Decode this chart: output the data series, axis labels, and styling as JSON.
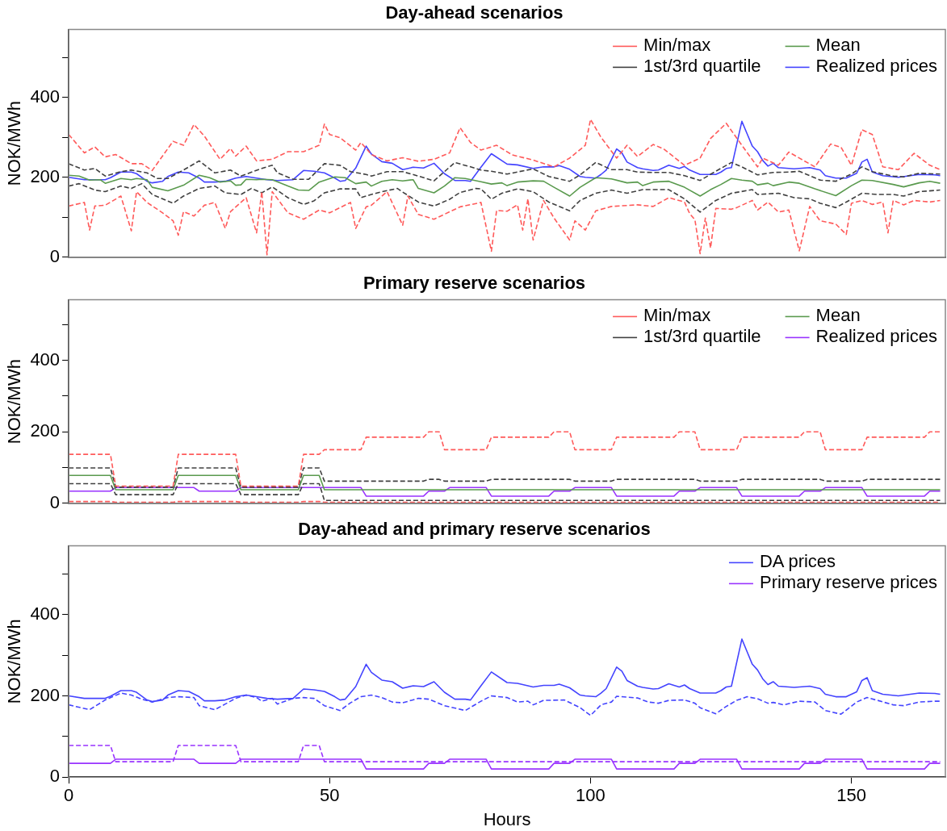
{
  "chart_data": [
    {
      "type": "line",
      "title": "Day-ahead scenarios",
      "ylabel": "NOK/MWh",
      "xlim": [
        0,
        168
      ],
      "ylim": [
        0,
        570
      ],
      "yticks": [
        0,
        {
          "value": 100,
          "label": null
        },
        200,
        {
          "value": 300,
          "label": null
        },
        400,
        {
          "value": 500,
          "label": null
        }
      ],
      "tick_labels": "y",
      "legend": "top right",
      "series": [
        {
          "name": "Min/max",
          "color": "#ff5a5a",
          "line_style": "dashed",
          "x": [
            0,
            3,
            4,
            5,
            7,
            10,
            12,
            13,
            15,
            18,
            20,
            21,
            22,
            24,
            26,
            28,
            30,
            31,
            34,
            36,
            37,
            38,
            39,
            42,
            45,
            48,
            50,
            54,
            55,
            57,
            58,
            61,
            64,
            65,
            67,
            70,
            75,
            79,
            81,
            82,
            84,
            86,
            87,
            88,
            89,
            91,
            93,
            96,
            97,
            99,
            101,
            104,
            109,
            112,
            115,
            118,
            119,
            120,
            121,
            122,
            123,
            124,
            127,
            128,
            131,
            132,
            134,
            136,
            138,
            140,
            142,
            144,
            147,
            149,
            150,
            152,
            154,
            156,
            157,
            158,
            160,
            162,
            165,
            167
          ],
          "values": [
            128,
            137,
            68,
            128,
            130,
            153,
            66,
            164,
            137,
            111,
            91,
            55,
            114,
            103,
            130,
            137,
            72,
            114,
            149,
            61,
            164,
            6,
            164,
            111,
            95,
            118,
            111,
            137,
            72,
            126,
            130,
            164,
            80,
            153,
            107,
            95,
            126,
            137,
            15,
            117,
            115,
            131,
            68,
            146,
            43,
            142,
            98,
            43,
            91,
            68,
            116,
            127,
            131,
            127,
            149,
            138,
            109,
            94,
            9,
            98,
            23,
            122,
            120,
            124,
            142,
            118,
            138,
            113,
            118,
            16,
            127,
            91,
            83,
            57,
            135,
            142,
            132,
            138,
            61,
            142,
            131,
            142,
            138,
            142
          ]
        },
        {
          "color": "#ff5a5a",
          "line_style": "dashed",
          "x": [
            0,
            3,
            5,
            7,
            9,
            12,
            14,
            16,
            20,
            22,
            24,
            26,
            29,
            31,
            32,
            34,
            36,
            39,
            42,
            45,
            48,
            49,
            50,
            52,
            55,
            56,
            58,
            61,
            64,
            67,
            70,
            73,
            75,
            77,
            79,
            82,
            85,
            89,
            93,
            96,
            99,
            100,
            102,
            105,
            107,
            109,
            112,
            114,
            118,
            121,
            123,
            126,
            129,
            132,
            133,
            136,
            138,
            140,
            143,
            146,
            148,
            150,
            152,
            154,
            156,
            159,
            162,
            165,
            167
          ],
          "values": [
            307,
            261,
            276,
            251,
            257,
            234,
            234,
            217,
            290,
            280,
            332,
            303,
            245,
            272,
            253,
            278,
            241,
            245,
            264,
            264,
            280,
            333,
            307,
            299,
            268,
            287,
            257,
            241,
            249,
            240,
            245,
            261,
            324,
            287,
            268,
            280,
            256,
            243,
            226,
            248,
            280,
            345,
            300,
            248,
            280,
            252,
            282,
            271,
            230,
            248,
            297,
            335,
            280,
            226,
            248,
            230,
            263,
            248,
            226,
            283,
            275,
            230,
            319,
            307,
            226,
            219,
            260,
            230,
            219
          ]
        },
        {
          "name": "1st/3rd quartile",
          "color": "#404040",
          "line_style": "dashed",
          "x": [
            0,
            2,
            5,
            7,
            10,
            12,
            14,
            16,
            20,
            22,
            25,
            28,
            30,
            33,
            35,
            37,
            39,
            42,
            45,
            47,
            49,
            52,
            55,
            56,
            58,
            60,
            63,
            64,
            67,
            70,
            73,
            75,
            78,
            79,
            81,
            83,
            86,
            89,
            92,
            96,
            98,
            101,
            104,
            107,
            110,
            115,
            118,
            121,
            124,
            127,
            131,
            132,
            136,
            139,
            142,
            144,
            147,
            149,
            152,
            155,
            158,
            160,
            163,
            167
          ],
          "values": [
            178,
            184,
            168,
            164,
            178,
            172,
            184,
            157,
            135,
            153,
            172,
            178,
            161,
            157,
            172,
            161,
            176,
            149,
            132,
            141,
            161,
            171,
            171,
            149,
            157,
            164,
            172,
            163,
            138,
            128,
            145,
            162,
            172,
            171,
            145,
            160,
            171,
            164,
            138,
            116,
            142,
            160,
            168,
            160,
            169,
            169,
            146,
            113,
            142,
            160,
            169,
            157,
            160,
            149,
            146,
            135,
            124,
            138,
            160,
            157,
            157,
            153,
            164,
            168
          ]
        },
        {
          "color": "#404040",
          "line_style": "dashed",
          "x": [
            0,
            3,
            5,
            7,
            10,
            12,
            15,
            17,
            19,
            22,
            25,
            28,
            31,
            33,
            37,
            39,
            40,
            43,
            46,
            49,
            52,
            54,
            57,
            58,
            61,
            64,
            67,
            70,
            74,
            77,
            79,
            81,
            84,
            89,
            92,
            96,
            98,
            101,
            104,
            107,
            109,
            112,
            115,
            118,
            121,
            124,
            127,
            129,
            132,
            135,
            138,
            140,
            144,
            147,
            150,
            152,
            154,
            158,
            160,
            163,
            167
          ],
          "values": [
            234,
            218,
            222,
            203,
            214,
            218,
            211,
            197,
            197,
            218,
            241,
            211,
            218,
            203,
            222,
            230,
            211,
            195,
            195,
            234,
            230,
            214,
            207,
            203,
            214,
            214,
            203,
            191,
            237,
            226,
            218,
            215,
            208,
            221,
            202,
            190,
            206,
            237,
            219,
            219,
            213,
            212,
            212,
            204,
            192,
            215,
            237,
            226,
            206,
            212,
            213,
            215,
            193,
            190,
            208,
            226,
            214,
            203,
            201,
            210,
            208
          ]
        },
        {
          "name": "Mean",
          "color": "#5a9a4e",
          "line_style": "solid",
          "x": [
            0,
            2,
            4,
            6,
            7,
            10,
            12,
            13,
            15,
            16,
            19,
            22,
            25,
            27,
            29,
            31,
            32,
            33,
            34,
            36,
            37,
            39,
            42,
            44,
            46,
            48,
            51,
            53,
            55,
            57,
            58,
            60,
            62,
            64,
            66,
            67,
            70,
            72,
            74,
            76,
            79,
            81,
            83,
            84,
            86,
            89,
            91,
            93,
            96,
            98,
            101,
            104,
            107,
            109,
            110,
            112,
            115,
            118,
            121,
            123,
            125,
            127,
            129,
            131,
            132,
            134,
            135,
            138,
            140,
            143,
            147,
            150,
            152,
            154,
            158,
            160,
            163,
            165,
            167
          ],
          "values": [
            205,
            203,
            193,
            194,
            185,
            197,
            194,
            197,
            194,
            175,
            166,
            180,
            205,
            199,
            188,
            191,
            180,
            181,
            195,
            194,
            195,
            194,
            178,
            168,
            167,
            188,
            201,
            199,
            184,
            188,
            178,
            190,
            194,
            191,
            194,
            172,
            161,
            178,
            199,
            197,
            189,
            183,
            186,
            179,
            188,
            191,
            190,
            175,
            153,
            175,
            199,
            196,
            186,
            188,
            179,
            188,
            190,
            175,
            153,
            169,
            182,
            197,
            193,
            190,
            181,
            185,
            179,
            188,
            185,
            171,
            154,
            179,
            193,
            192,
            182,
            176,
            186,
            190,
            185
          ]
        },
        {
          "name": "Realized prices",
          "color": "#4444ff",
          "line_style": "solid",
          "x": [
            0,
            3,
            7,
            8,
            10,
            12,
            13,
            15,
            16,
            18,
            19,
            21,
            23,
            25,
            26,
            28,
            30,
            32,
            34,
            36,
            38,
            40,
            43,
            45,
            47,
            49,
            51,
            52,
            53,
            55,
            57,
            58,
            60,
            62,
            64,
            66,
            68,
            70,
            72,
            74,
            76,
            77,
            79,
            81,
            84,
            86,
            89,
            91,
            93,
            94,
            96,
            98,
            99,
            101,
            102,
            103,
            105,
            106,
            107,
            109,
            110,
            112,
            113,
            115,
            117,
            118,
            119,
            121,
            124,
            125,
            126,
            127,
            129,
            130,
            131,
            132,
            133,
            134,
            135,
            136,
            139,
            142,
            144,
            145,
            147,
            149,
            151,
            152,
            153,
            154,
            156,
            159,
            163,
            166,
            167
          ],
          "values": [
            200,
            194,
            194,
            199,
            213,
            213,
            209,
            190,
            186,
            190,
            202,
            213,
            211,
            198,
            188,
            188,
            190,
            198,
            202,
            198,
            194,
            192,
            194,
            217,
            215,
            211,
            198,
            190,
            192,
            223,
            278,
            258,
            239,
            235,
            219,
            225,
            223,
            235,
            209,
            192,
            192,
            190,
            225,
            259,
            233,
            231,
            222,
            226,
            226,
            229,
            220,
            202,
            200,
            198,
            207,
            218,
            271,
            261,
            238,
            224,
            221,
            217,
            218,
            230,
            222,
            227,
            218,
            207,
            207,
            213,
            222,
            224,
            340,
            309,
            278,
            264,
            242,
            228,
            235,
            224,
            221,
            224,
            218,
            204,
            198,
            198,
            210,
            238,
            245,
            213,
            204,
            200,
            207,
            206,
            204
          ]
        }
      ]
    },
    {
      "type": "line",
      "title": "Primary reserve scenarios",
      "ylabel": "NOK/MWh",
      "xlim": [
        0,
        168
      ],
      "ylim": [
        0,
        570
      ],
      "yticks": [
        0,
        {
          "value": 100,
          "label": null
        },
        200,
        {
          "value": 300,
          "label": null
        },
        400,
        {
          "value": 500,
          "label": null
        }
      ],
      "tick_labels": "y",
      "legend": "top right",
      "series": [
        {
          "name": "Min/max",
          "color": "#ff5a5a",
          "line_style": "dashed",
          "x": [
            0,
            8,
            9,
            20,
            21,
            32,
            33,
            44,
            45,
            48,
            49,
            167
          ],
          "values": [
            5,
            5,
            3,
            3,
            5,
            5,
            3,
            3,
            5,
            5,
            3,
            3
          ]
        },
        {
          "color": "#ff5a5a",
          "line_style": "dashed",
          "x": [
            0,
            8,
            9,
            20,
            21,
            32,
            33,
            44,
            45,
            48,
            49,
            56,
            57,
            68,
            69,
            71,
            72,
            80,
            81,
            92,
            93,
            96,
            97,
            104,
            105,
            116,
            117,
            120,
            121,
            128,
            129,
            140,
            141,
            144,
            145,
            152,
            153,
            164,
            165,
            167
          ],
          "values": [
            137,
            137,
            48,
            48,
            137,
            137,
            48,
            48,
            137,
            137,
            150,
            150,
            185,
            185,
            200,
            200,
            150,
            150,
            185,
            185,
            200,
            200,
            150,
            150,
            185,
            185,
            200,
            200,
            150,
            150,
            185,
            185,
            200,
            200,
            150,
            150,
            185,
            185,
            200,
            200
          ]
        },
        {
          "name": "1st/3rd quartile",
          "color": "#404040",
          "line_style": "dashed",
          "x": [
            0,
            8,
            9,
            20,
            21,
            32,
            33,
            44,
            45,
            48,
            49,
            167
          ],
          "values": [
            55,
            55,
            24,
            24,
            55,
            55,
            24,
            24,
            55,
            55,
            8,
            8
          ]
        },
        {
          "color": "#404040",
          "line_style": "dashed",
          "x": [
            0,
            8,
            9,
            20,
            21,
            32,
            33,
            44,
            45,
            48,
            49,
            68,
            69,
            71,
            72,
            80,
            81,
            96,
            97,
            104,
            105,
            120,
            121,
            128,
            129,
            144,
            145,
            152,
            153,
            167
          ],
          "values": [
            99,
            99,
            45,
            45,
            99,
            99,
            45,
            45,
            99,
            99,
            62,
            62,
            67,
            67,
            62,
            62,
            67,
            67,
            62,
            62,
            67,
            67,
            62,
            62,
            67,
            67,
            62,
            62,
            67,
            67
          ]
        },
        {
          "name": "Mean",
          "color": "#5a9a4e",
          "line_style": "solid",
          "x": [
            0,
            8,
            9,
            20,
            21,
            32,
            33,
            44,
            45,
            48,
            49,
            167
          ],
          "values": [
            78,
            78,
            38,
            38,
            78,
            78,
            38,
            38,
            78,
            78,
            38,
            38
          ]
        },
        {
          "name": "Realized prices",
          "color": "#9933ff",
          "line_style": "solid",
          "x": [
            0,
            8,
            9,
            24,
            25,
            32,
            33,
            56,
            57,
            68,
            69,
            72,
            73,
            80,
            81,
            92,
            93,
            96,
            97,
            104,
            105,
            116,
            117,
            120,
            121,
            128,
            129,
            140,
            141,
            144,
            145,
            152,
            153,
            164,
            165,
            167
          ],
          "values": [
            34,
            34,
            44,
            44,
            34,
            34,
            44,
            44,
            20,
            20,
            34,
            34,
            44,
            44,
            20,
            20,
            34,
            34,
            44,
            44,
            20,
            20,
            34,
            34,
            44,
            44,
            20,
            20,
            34,
            34,
            44,
            44,
            20,
            20,
            34,
            34
          ]
        }
      ]
    },
    {
      "type": "line",
      "title": "Day-ahead and primary reserve scenarios",
      "xlabel": "Hours",
      "ylabel": "NOK/MWh",
      "xlim": [
        0,
        168
      ],
      "ylim": [
        0,
        570
      ],
      "xticks": [
        0,
        50,
        100,
        150
      ],
      "yticks": [
        0,
        {
          "value": 100,
          "label": null
        },
        200,
        {
          "value": 300,
          "label": null
        },
        400,
        {
          "value": 500,
          "label": null
        }
      ],
      "legend": "top right",
      "series": [
        {
          "name": "DA prices",
          "color": "#4444ff",
          "line_style": "solid",
          "x": [
            0,
            3,
            7,
            8,
            10,
            12,
            13,
            15,
            16,
            18,
            19,
            21,
            23,
            25,
            26,
            28,
            30,
            32,
            34,
            36,
            38,
            40,
            43,
            45,
            47,
            49,
            51,
            52,
            53,
            55,
            57,
            58,
            60,
            62,
            64,
            66,
            68,
            70,
            72,
            74,
            76,
            77,
            79,
            81,
            84,
            86,
            89,
            91,
            93,
            94,
            96,
            98,
            99,
            101,
            102,
            103,
            105,
            106,
            107,
            109,
            110,
            112,
            113,
            115,
            117,
            118,
            119,
            121,
            124,
            125,
            126,
            127,
            129,
            130,
            131,
            132,
            133,
            134,
            135,
            136,
            139,
            142,
            144,
            145,
            147,
            149,
            151,
            152,
            153,
            154,
            156,
            159,
            163,
            166,
            167
          ],
          "values": [
            200,
            194,
            194,
            199,
            213,
            213,
            209,
            190,
            186,
            190,
            202,
            213,
            211,
            198,
            188,
            188,
            190,
            198,
            202,
            198,
            194,
            192,
            194,
            217,
            215,
            211,
            198,
            190,
            192,
            223,
            278,
            258,
            239,
            235,
            219,
            225,
            223,
            235,
            209,
            192,
            192,
            190,
            225,
            259,
            233,
            231,
            222,
            226,
            226,
            229,
            220,
            202,
            200,
            198,
            207,
            218,
            271,
            261,
            238,
            224,
            221,
            217,
            218,
            230,
            222,
            227,
            218,
            207,
            207,
            213,
            222,
            224,
            340,
            309,
            278,
            264,
            242,
            228,
            235,
            224,
            221,
            224,
            218,
            204,
            198,
            198,
            210,
            238,
            245,
            213,
            204,
            200,
            207,
            206,
            204
          ]
        },
        {
          "name": "Primary reserve prices",
          "color": "#9933ff",
          "line_style": "solid",
          "x": [
            0,
            8,
            9,
            24,
            25,
            32,
            33,
            56,
            57,
            68,
            69,
            72,
            73,
            80,
            81,
            92,
            93,
            96,
            97,
            104,
            105,
            116,
            117,
            120,
            121,
            128,
            129,
            140,
            141,
            144,
            145,
            152,
            153,
            164,
            165,
            167
          ],
          "values": [
            34,
            34,
            44,
            44,
            34,
            34,
            44,
            44,
            20,
            20,
            34,
            34,
            44,
            44,
            20,
            20,
            34,
            34,
            44,
            44,
            20,
            20,
            34,
            34,
            44,
            44,
            20,
            20,
            34,
            34,
            44,
            44,
            20,
            20,
            34,
            34
          ]
        },
        {
          "color": "#4444ff",
          "line_style": "dashed",
          "x": [
            0,
            4,
            7,
            10,
            12,
            14,
            16,
            19,
            21,
            24,
            25,
            28,
            30,
            32,
            34,
            36,
            37,
            39,
            40,
            43,
            45,
            47,
            49,
            52,
            54,
            56,
            58,
            60,
            62,
            64,
            67,
            69,
            72,
            76,
            79,
            81,
            84,
            86,
            88,
            89,
            91,
            95,
            98,
            100,
            102,
            104,
            105,
            109,
            111,
            113,
            115,
            118,
            120,
            121,
            124,
            126,
            128,
            130,
            132,
            134,
            135,
            137,
            140,
            143,
            145,
            148,
            151,
            153,
            155,
            158,
            160,
            163,
            166,
            167
          ],
          "values": [
            178,
            166,
            190,
            207,
            202,
            192,
            185,
            196,
            198,
            196,
            176,
            166,
            180,
            194,
            202,
            196,
            187,
            194,
            180,
            194,
            196,
            194,
            176,
            164,
            183,
            198,
            202,
            196,
            185,
            183,
            194,
            192,
            176,
            164,
            187,
            200,
            196,
            185,
            187,
            178,
            189,
            190,
            171,
            152,
            178,
            185,
            199,
            195,
            185,
            182,
            189,
            190,
            182,
            171,
            156,
            174,
            189,
            198,
            193,
            182,
            184,
            178,
            187,
            185,
            164,
            155,
            185,
            196,
            189,
            178,
            176,
            185,
            187,
            187
          ]
        },
        {
          "color": "#9933ff",
          "line_style": "dashed",
          "x": [
            0,
            8,
            9,
            20,
            21,
            32,
            33,
            44,
            45,
            48,
            49,
            167
          ],
          "values": [
            78,
            78,
            38,
            38,
            78,
            78,
            38,
            38,
            78,
            78,
            38,
            38
          ]
        }
      ]
    }
  ]
}
